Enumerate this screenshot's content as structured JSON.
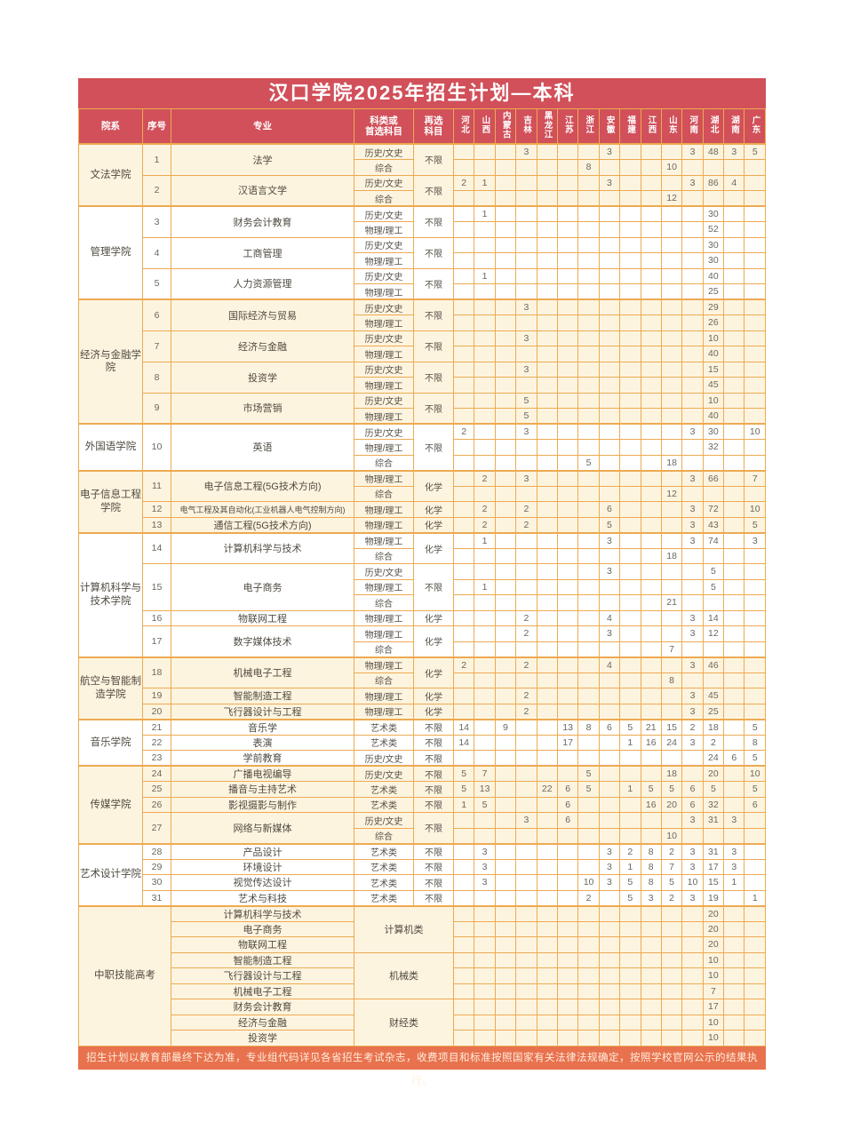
{
  "title": "汉口学院2025年招生计划—本科",
  "footer": "招生计划以教育部最终下达为准，专业组代码详见各省招生考试杂志，收费项目和标准按照国家有关法律法规确定，按照学校官网公示的结果执行。",
  "colors": {
    "header_red": "#d1505a",
    "border_orange": "#edaa52",
    "row_cream": "#fdf4df",
    "row_white": "#ffffff",
    "footer_orange": "#e8724e"
  },
  "columns": {
    "dept": "院系",
    "no": "序号",
    "major": "专业",
    "subject_lines": [
      "科类或",
      "首选科目"
    ],
    "resubject_lines": [
      "再选",
      "科目"
    ],
    "provinces": [
      "河北",
      "山西",
      "内蒙古",
      "吉林",
      "黑龙江",
      "江苏",
      "浙江",
      "安徽",
      "福建",
      "江西",
      "山东",
      "河南",
      "湖北",
      "湖南",
      "广东"
    ]
  },
  "departments": [
    {
      "name": "文法学院",
      "shade": "cream",
      "majors": [
        {
          "no": "1",
          "name": "法学",
          "resubject": "不限",
          "rows": [
            {
              "subject": "历史/文史",
              "values": {
                "吉林": "3",
                "安徽": "3",
                "河南": "3",
                "湖北": "48",
                "湖南": "3",
                "广东": "5"
              }
            },
            {
              "subject": "综合",
              "values": {
                "浙江": "8",
                "山东": "10"
              }
            }
          ]
        },
        {
          "no": "2",
          "name": "汉语言文学",
          "resubject": "不限",
          "rows": [
            {
              "subject": "历史/文史",
              "values": {
                "河北": "2",
                "山西": "1",
                "安徽": "3",
                "河南": "3",
                "湖北": "86",
                "湖南": "4"
              }
            },
            {
              "subject": "综合",
              "values": {
                "山东": "12"
              }
            }
          ]
        }
      ]
    },
    {
      "name": "管理学院",
      "shade": "white",
      "majors": [
        {
          "no": "3",
          "name": "财务会计教育",
          "resubject": "不限",
          "rows": [
            {
              "subject": "历史/文史",
              "values": {
                "山西": "1",
                "湖北": "30"
              }
            },
            {
              "subject": "物理/理工",
              "values": {
                "湖北": "52"
              }
            }
          ]
        },
        {
          "no": "4",
          "name": "工商管理",
          "resubject": "不限",
          "rows": [
            {
              "subject": "历史/文史",
              "values": {
                "湖北": "30"
              }
            },
            {
              "subject": "物理/理工",
              "values": {
                "湖北": "30"
              }
            }
          ]
        },
        {
          "no": "5",
          "name": "人力资源管理",
          "resubject": "不限",
          "rows": [
            {
              "subject": "历史/文史",
              "values": {
                "山西": "1",
                "湖北": "40"
              }
            },
            {
              "subject": "物理/理工",
              "values": {
                "湖北": "25"
              }
            }
          ]
        }
      ]
    },
    {
      "name": "经济与金融学院",
      "shade": "cream",
      "majors": [
        {
          "no": "6",
          "name": "国际经济与贸易",
          "resubject": "不限",
          "rows": [
            {
              "subject": "历史/文史",
              "values": {
                "吉林": "3",
                "湖北": "29"
              }
            },
            {
              "subject": "物理/理工",
              "values": {
                "湖北": "26"
              }
            }
          ]
        },
        {
          "no": "7",
          "name": "经济与金融",
          "resubject": "不限",
          "rows": [
            {
              "subject": "历史/文史",
              "values": {
                "吉林": "3",
                "湖北": "10"
              }
            },
            {
              "subject": "物理/理工",
              "values": {
                "湖北": "40"
              }
            }
          ]
        },
        {
          "no": "8",
          "name": "投资学",
          "resubject": "不限",
          "rows": [
            {
              "subject": "历史/文史",
              "values": {
                "吉林": "3",
                "湖北": "15"
              }
            },
            {
              "subject": "物理/理工",
              "values": {
                "湖北": "45"
              }
            }
          ]
        },
        {
          "no": "9",
          "name": "市场营销",
          "resubject": "不限",
          "rows": [
            {
              "subject": "历史/文史",
              "values": {
                "吉林": "5",
                "湖北": "10"
              }
            },
            {
              "subject": "物理/理工",
              "values": {
                "吉林": "5",
                "湖北": "40"
              }
            }
          ]
        }
      ]
    },
    {
      "name": "外国语学院",
      "shade": "white",
      "majors": [
        {
          "no": "10",
          "name": "英语",
          "resubject": "不限",
          "rows": [
            {
              "subject": "历史/文史",
              "values": {
                "河北": "2",
                "吉林": "3",
                "河南": "3",
                "湖北": "30",
                "广东": "10"
              }
            },
            {
              "subject": "物理/理工",
              "values": {
                "湖北": "32"
              }
            },
            {
              "subject": "综合",
              "values": {
                "浙江": "5",
                "山东": "18"
              }
            }
          ]
        }
      ]
    },
    {
      "name": "电子信息工程学院",
      "shade": "cream",
      "majors": [
        {
          "no": "11",
          "name": "电子信息工程(5G技术方向)",
          "resubject": "化学",
          "rows": [
            {
              "subject": "物理/理工",
              "values": {
                "山西": "2",
                "吉林": "3",
                "河南": "3",
                "湖北": "66",
                "广东": "7"
              }
            },
            {
              "subject": "综合",
              "values": {
                "山东": "12"
              }
            }
          ]
        },
        {
          "no": "12",
          "name": "电气工程及其自动化(工业机器人电气控制方向)",
          "resubject": "化学",
          "rows": [
            {
              "subject": "物理/理工",
              "values": {
                "山西": "2",
                "吉林": "2",
                "安徽": "6",
                "河南": "3",
                "湖北": "72",
                "广东": "10"
              }
            }
          ]
        },
        {
          "no": "13",
          "name": "通信工程(5G技术方向)",
          "resubject": "化学",
          "rows": [
            {
              "subject": "物理/理工",
              "values": {
                "山西": "2",
                "吉林": "2",
                "安徽": "5",
                "河南": "3",
                "湖北": "43",
                "广东": "5"
              }
            }
          ]
        }
      ]
    },
    {
      "name": "计算机科学与技术学院",
      "shade": "white",
      "majors": [
        {
          "no": "14",
          "name": "计算机科学与技术",
          "resubject": "化学",
          "rows": [
            {
              "subject": "物理/理工",
              "values": {
                "山西": "1",
                "安徽": "3",
                "河南": "3",
                "湖北": "74",
                "广东": "3"
              }
            },
            {
              "subject": "综合",
              "values": {
                "山东": "18"
              }
            }
          ]
        },
        {
          "no": "15",
          "name": "电子商务",
          "resubject": "不限",
          "rows": [
            {
              "subject": "历史/文史",
              "values": {
                "安徽": "3",
                "湖北": "5"
              }
            },
            {
              "subject": "物理/理工",
              "values": {
                "山西": "1",
                "湖北": "5"
              }
            },
            {
              "subject": "综合",
              "values": {
                "山东": "21"
              }
            }
          ]
        },
        {
          "no": "16",
          "name": "物联网工程",
          "resubject": "化学",
          "rows": [
            {
              "subject": "物理/理工",
              "values": {
                "吉林": "2",
                "安徽": "4",
                "河南": "3",
                "湖北": "14"
              }
            }
          ]
        },
        {
          "no": "17",
          "name": "数字媒体技术",
          "resubject": "化学",
          "rows": [
            {
              "subject": "物理/理工",
              "values": {
                "吉林": "2",
                "安徽": "3",
                "河南": "3",
                "湖北": "12"
              }
            },
            {
              "subject": "综合",
              "values": {
                "山东": "7"
              }
            }
          ]
        }
      ]
    },
    {
      "name": "航空与智能制造学院",
      "shade": "cream",
      "majors": [
        {
          "no": "18",
          "name": "机械电子工程",
          "resubject": "化学",
          "rows": [
            {
              "subject": "物理/理工",
              "values": {
                "河北": "2",
                "吉林": "2",
                "安徽": "4",
                "河南": "3",
                "湖北": "46"
              }
            },
            {
              "subject": "综合",
              "values": {
                "山东": "8"
              }
            }
          ]
        },
        {
          "no": "19",
          "name": "智能制造工程",
          "resubject": "化学",
          "rows": [
            {
              "subject": "物理/理工",
              "values": {
                "吉林": "2",
                "河南": "3",
                "湖北": "45"
              }
            }
          ]
        },
        {
          "no": "20",
          "name": "飞行器设计与工程",
          "resubject": "化学",
          "rows": [
            {
              "subject": "物理/理工",
              "values": {
                "吉林": "2",
                "河南": "3",
                "湖北": "25"
              }
            }
          ]
        }
      ]
    },
    {
      "name": "音乐学院",
      "shade": "white",
      "majors": [
        {
          "no": "21",
          "name": "音乐学",
          "resubject": "不限",
          "rows": [
            {
              "subject": "艺术类",
              "values": {
                "河北": "14",
                "内蒙古": "9",
                "江苏": "13",
                "浙江": "8",
                "安徽": "6",
                "福建": "5",
                "江西": "21",
                "山东": "15",
                "河南": "2",
                "湖北": "18",
                "广东": "5"
              }
            }
          ]
        },
        {
          "no": "22",
          "name": "表演",
          "resubject": "不限",
          "rows": [
            {
              "subject": "艺术类",
              "values": {
                "河北": "14",
                "江苏": "17",
                "福建": "1",
                "江西": "16",
                "山东": "24",
                "河南": "3",
                "湖北": "2",
                "广东": "8"
              }
            }
          ]
        },
        {
          "no": "23",
          "name": "学前教育",
          "resubject": "不限",
          "rows": [
            {
              "subject": "历史/文史",
              "values": {
                "湖北": "24",
                "湖南": "6",
                "广东": "5"
              }
            }
          ]
        }
      ]
    },
    {
      "name": "传媒学院",
      "shade": "cream",
      "majors": [
        {
          "no": "24",
          "name": "广播电视编导",
          "resubject": "不限",
          "rows": [
            {
              "subject": "历史/文史",
              "values": {
                "河北": "5",
                "山西": "7",
                "浙江": "5",
                "山东": "18",
                "湖北": "20",
                "广东": "10"
              }
            }
          ]
        },
        {
          "no": "25",
          "name": "播音与主持艺术",
          "resubject": "不限",
          "rows": [
            {
              "subject": "艺术类",
              "values": {
                "河北": "5",
                "山西": "13",
                "黑龙江": "22",
                "江苏": "6",
                "浙江": "5",
                "福建": "1",
                "江西": "5",
                "山东": "5",
                "河南": "6",
                "湖北": "5",
                "广东": "5"
              }
            }
          ]
        },
        {
          "no": "26",
          "name": "影视摄影与制作",
          "resubject": "不限",
          "rows": [
            {
              "subject": "艺术类",
              "values": {
                "河北": "1",
                "山西": "5",
                "江苏": "6",
                "江西": "16",
                "山东": "20",
                "河南": "6",
                "湖北": "32",
                "广东": "6"
              }
            }
          ]
        },
        {
          "no": "27",
          "name": "网络与新媒体",
          "resubject": "不限",
          "rows": [
            {
              "subject": "历史/文史",
              "values": {
                "吉林": "3",
                "江苏": "6",
                "河南": "3",
                "湖北": "31",
                "湖南": "3"
              }
            },
            {
              "subject": "综合",
              "values": {
                "山东": "10"
              }
            }
          ]
        }
      ]
    },
    {
      "name": "艺术设计学院",
      "shade": "white",
      "majors": [
        {
          "no": "28",
          "name": "产品设计",
          "resubject": "不限",
          "rows": [
            {
              "subject": "艺术类",
              "values": {
                "山西": "3",
                "安徽": "3",
                "福建": "2",
                "江西": "8",
                "山东": "2",
                "河南": "3",
                "湖北": "31",
                "湖南": "3"
              }
            }
          ]
        },
        {
          "no": "29",
          "name": "环境设计",
          "resubject": "不限",
          "rows": [
            {
              "subject": "艺术类",
              "values": {
                "山西": "3",
                "安徽": "3",
                "福建": "1",
                "江西": "8",
                "山东": "7",
                "河南": "3",
                "湖北": "17",
                "湖南": "3"
              }
            }
          ]
        },
        {
          "no": "30",
          "name": "视觉传达设计",
          "resubject": "不限",
          "rows": [
            {
              "subject": "艺术类",
              "values": {
                "山西": "3",
                "浙江": "10",
                "安徽": "3",
                "福建": "5",
                "江西": "8",
                "山东": "5",
                "河南": "10",
                "湖北": "15",
                "湖南": "1"
              }
            }
          ]
        },
        {
          "no": "31",
          "name": "艺术与科技",
          "resubject": "不限",
          "rows": [
            {
              "subject": "艺术类",
              "values": {
                "浙江": "2",
                "福建": "5",
                "江西": "3",
                "山东": "2",
                "河南": "3",
                "湖北": "19",
                "广东": "1"
              }
            }
          ]
        }
      ]
    },
    {
      "name": "中职技能高考",
      "shade": "cream",
      "merged": true,
      "majors": [
        {
          "name": "计算机科学与技术",
          "category": "计算机类",
          "cat_span": 3,
          "values": {
            "湖北": "20"
          }
        },
        {
          "name": "电子商务",
          "values": {
            "湖北": "20"
          }
        },
        {
          "name": "物联网工程",
          "values": {
            "湖北": "20"
          }
        },
        {
          "name": "智能制造工程",
          "category": "机械类",
          "cat_span": 3,
          "values": {
            "湖北": "10"
          }
        },
        {
          "name": "飞行器设计与工程",
          "values": {
            "湖北": "10"
          }
        },
        {
          "name": "机械电子工程",
          "values": {
            "湖北": "7"
          }
        },
        {
          "name": "财务会计教育",
          "category": "财经类",
          "cat_span": 3,
          "values": {
            "湖北": "17"
          }
        },
        {
          "name": "经济与金融",
          "values": {
            "湖北": "10"
          }
        },
        {
          "name": "投资学",
          "values": {
            "湖北": "10"
          }
        }
      ]
    }
  ]
}
